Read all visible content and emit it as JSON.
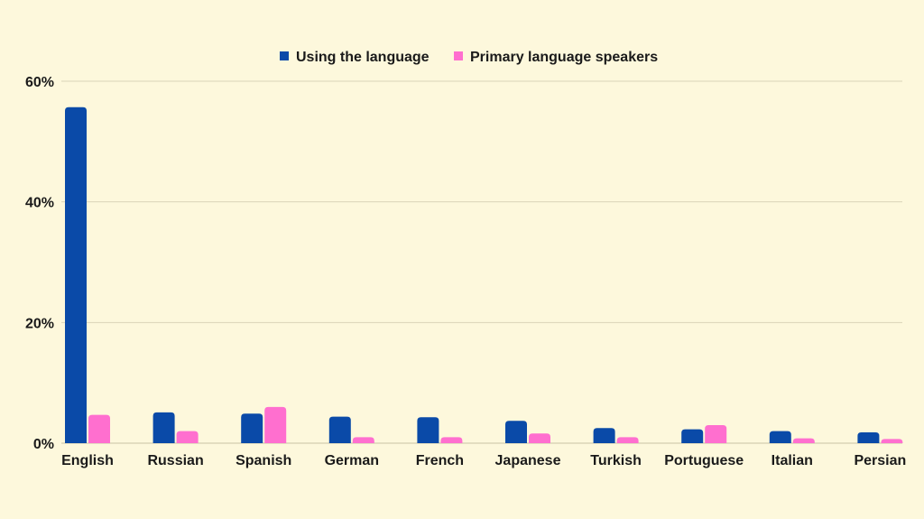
{
  "chart_data": {
    "type": "bar",
    "title": "",
    "xlabel": "",
    "ylabel": "",
    "categories": [
      "English",
      "Russian",
      "Spanish",
      "German",
      "French",
      "Japanese",
      "Turkish",
      "Portuguese",
      "Italian",
      "Persian"
    ],
    "series": [
      {
        "name": "Using the language",
        "color": "#0a4aa8",
        "values": [
          55.7,
          5.1,
          4.9,
          4.4,
          4.3,
          3.7,
          2.5,
          2.3,
          2.0,
          1.8
        ]
      },
      {
        "name": "Primary language speakers",
        "color": "#ff6fcf",
        "values": [
          4.7,
          2.0,
          6.0,
          1.0,
          1.0,
          1.6,
          1.0,
          3.0,
          0.8,
          0.7
        ]
      }
    ],
    "ylim": [
      0,
      60
    ],
    "yticks": [
      0,
      20,
      40,
      60
    ],
    "ytick_labels": [
      "0%",
      "20%",
      "40%",
      "60%"
    ],
    "grid": true,
    "legend_position": "top-center"
  }
}
